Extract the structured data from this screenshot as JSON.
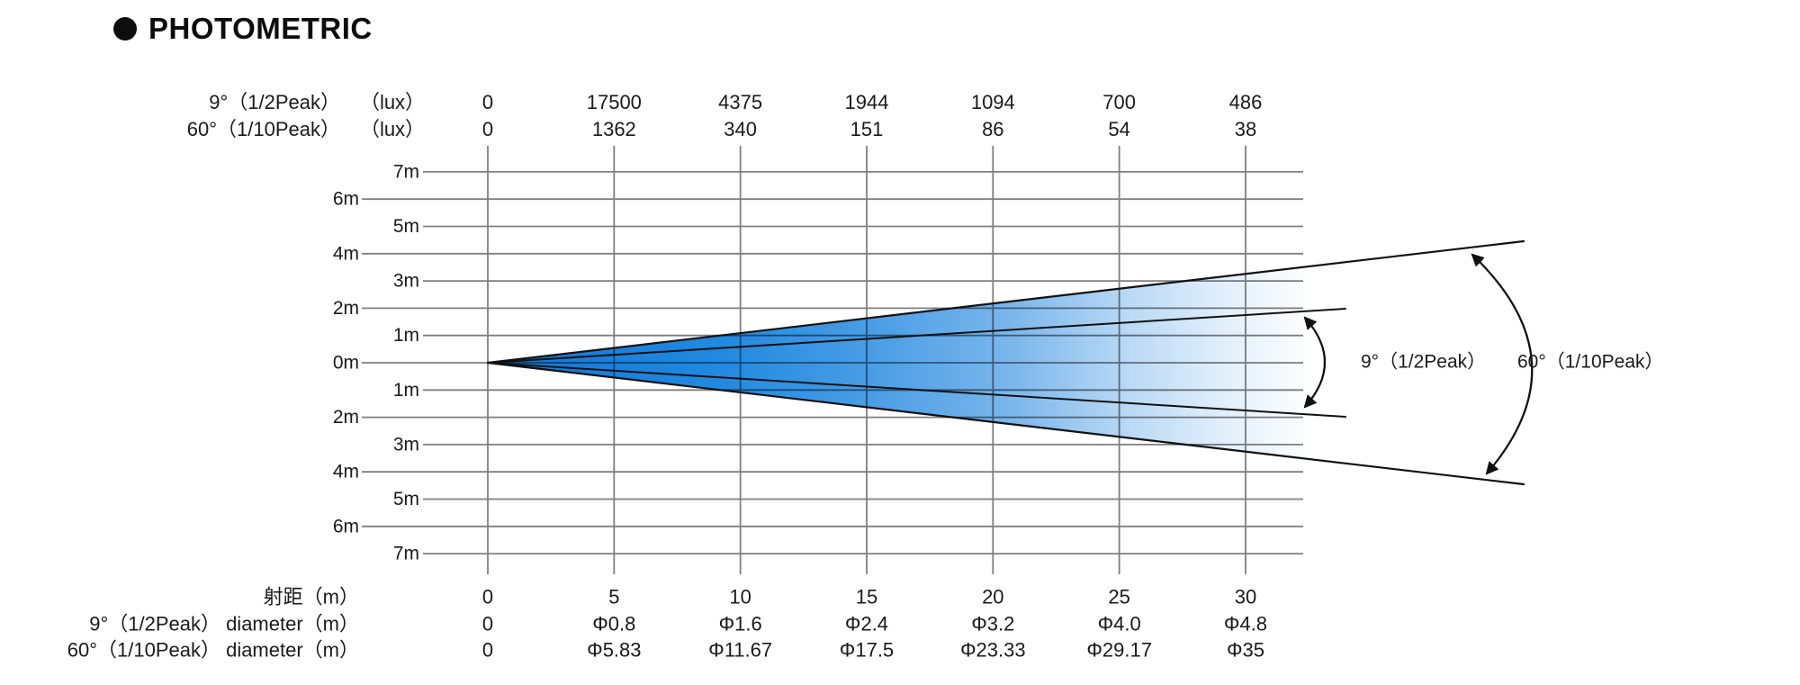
{
  "title": "PHOTOMETRIC",
  "colors": {
    "beam_blue_start": "#1277d5",
    "beam_blue_mid": "#4a9de5",
    "beam_fade_light": "#b9d9f5",
    "grid_gray": "#7f7f7f",
    "line_black": "#111111",
    "text_black": "#1a1a1a"
  },
  "chart_data": {
    "type": "photometric-beam-diagram",
    "title": "PHOTOMETRIC",
    "distances_m": [
      0,
      5,
      10,
      15,
      20,
      25,
      30
    ],
    "distance_row_label": "射距（m）",
    "lux_rows": [
      {
        "label": "9°（1/2Peak）",
        "unit": "（lux）",
        "values": [
          "0",
          "17500",
          "4375",
          "1944",
          "1094",
          "700",
          "486"
        ]
      },
      {
        "label": "60°（1/10Peak）",
        "unit": "（lux）",
        "values": [
          "0",
          "1362",
          "340",
          "151",
          "86",
          "54",
          "38"
        ]
      }
    ],
    "diameter_rows": [
      {
        "label": "9°（1/2Peak） diameter（m）",
        "values": [
          "0",
          "Φ0.8",
          "Φ1.6",
          "Φ2.4",
          "Φ3.2",
          "Φ4.0",
          "Φ4.8"
        ]
      },
      {
        "label": "60°（1/10Peak） diameter（m）",
        "values": [
          "0",
          "Φ5.83",
          "Φ11.67",
          "Φ17.5",
          "Φ23.33",
          "Φ29.17",
          "Φ35"
        ]
      }
    ],
    "vertical_axis_labels": [
      "7m",
      "6m",
      "5m",
      "4m",
      "3m",
      "2m",
      "1m",
      "0m",
      "1m",
      "2m",
      "3m",
      "4m",
      "5m",
      "6m",
      "7m"
    ],
    "beam_annotations": [
      {
        "label": "9°（1/2Peak）",
        "angle_deg": 9,
        "peak_fraction": "1/2"
      },
      {
        "label": "60°（1/10Peak）",
        "angle_deg": 60,
        "peak_fraction": "1/10"
      }
    ],
    "axis_ranges": {
      "horizontal_m": [
        0,
        30
      ],
      "vertical_m": [
        -7,
        7
      ]
    },
    "grid": true
  }
}
